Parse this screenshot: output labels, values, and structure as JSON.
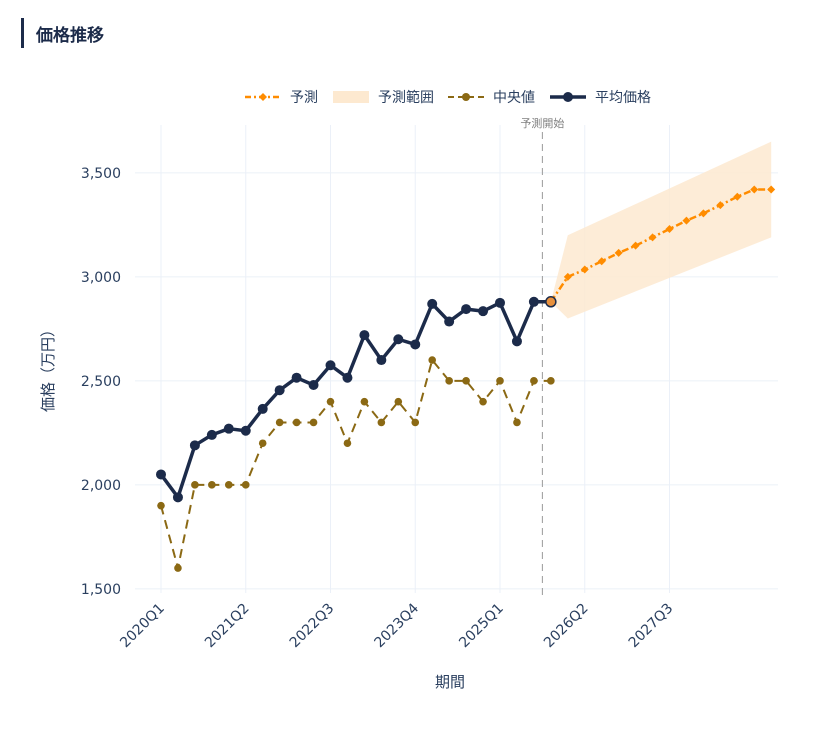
{
  "page": {
    "title": "価格推移"
  },
  "chart_data": {
    "type": "line",
    "title": "",
    "xlabel": "期間",
    "ylabel": "価格（万円）",
    "x_tick_labels": [
      "2020Q1",
      "2021Q2",
      "2022Q3",
      "2023Q4",
      "2025Q1",
      "2026Q2",
      "2027Q3"
    ],
    "y_ticks": [
      1500,
      2000,
      2500,
      3000,
      3500
    ],
    "y_tick_labels": [
      "1,500",
      "2,000",
      "2,500",
      "3,000",
      "3,500"
    ],
    "ylim": [
      1480,
      3730
    ],
    "grid": true,
    "legend_position": "top",
    "forecast_start_label": "予測開始",
    "forecast_start_index": 22.5,
    "colors": {
      "average": "#1c2b4a",
      "median": "#8b6914",
      "forecast": "#ff8c00",
      "band": "#fde9d0",
      "marker_split": "#e8903c"
    },
    "series": [
      {
        "name": "平均価格",
        "x": [
          0,
          1,
          2,
          3,
          4,
          5,
          6,
          7,
          8,
          9,
          10,
          11,
          12,
          13,
          14,
          15,
          16,
          17,
          18,
          19,
          20,
          21,
          22,
          23
        ],
        "values": [
          2050,
          1940,
          2190,
          2240,
          2270,
          2260,
          2365,
          2455,
          2515,
          2480,
          2575,
          2515,
          2720,
          2600,
          2700,
          2675,
          2870,
          2785,
          2845,
          2835,
          2875,
          2690,
          2880,
          2880
        ]
      },
      {
        "name": "中央値",
        "x": [
          0,
          1,
          2,
          3,
          4,
          5,
          6,
          7,
          8,
          9,
          10,
          11,
          12,
          13,
          14,
          15,
          16,
          17,
          18,
          19,
          20,
          21,
          22,
          23
        ],
        "values": [
          1900,
          1600,
          2000,
          2000,
          2000,
          2000,
          2200,
          2300,
          2300,
          2300,
          2400,
          2200,
          2400,
          2300,
          2400,
          2300,
          2600,
          2500,
          2500,
          2400,
          2500,
          2300,
          2500,
          2500
        ]
      },
      {
        "name": "予測",
        "x": [
          23,
          24,
          25,
          26,
          27,
          28,
          29,
          30,
          31,
          32,
          33,
          34,
          35,
          36
        ],
        "values": [
          2880,
          3000,
          3035,
          3075,
          3115,
          3150,
          3190,
          3230,
          3270,
          3305,
          3345,
          3385,
          3420,
          3420
        ]
      },
      {
        "name": "予測範囲",
        "x": [
          23,
          24,
          36
        ],
        "upper": [
          2880,
          3200,
          3650
        ],
        "lower": [
          2880,
          2800,
          3190
        ]
      }
    ]
  }
}
